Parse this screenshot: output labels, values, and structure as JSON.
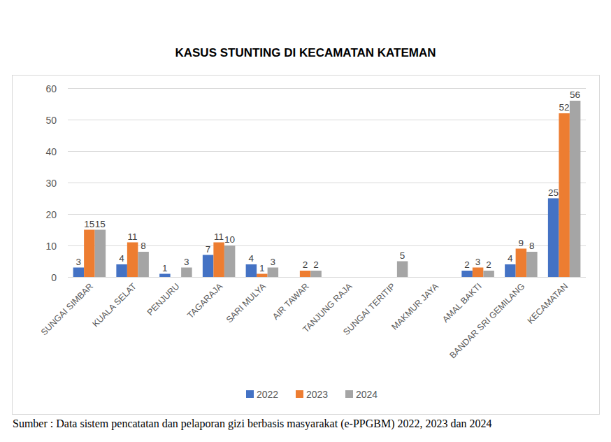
{
  "chart_data": {
    "type": "bar",
    "title": "KASUS STUNTING DI KECAMATAN KATEMAN",
    "source": "Sumber : Data sistem pencatatan dan pelaporan gizi berbasis masyarakat (e-PPGBM) 2022, 2023 dan 2024",
    "categories": [
      "SUNGAI SIMBAR",
      "KUALA SELAT",
      "PENJURU",
      "TAGARAJA",
      "SARI MULYA",
      "AIR TAWAR",
      "TANJUNG RAJA",
      "SUNGAI TERITIP",
      "MAKMUR JAYA",
      "AMAL BAKTI",
      "BANDAR SRI GEMILANG",
      "KECAMATAN"
    ],
    "series": [
      {
        "name": "2022",
        "color": "#4472c4",
        "values": [
          3,
          4,
          1,
          7,
          4,
          null,
          null,
          null,
          null,
          2,
          4,
          25
        ]
      },
      {
        "name": "2023",
        "color": "#ed7d31",
        "values": [
          15,
          11,
          null,
          11,
          1,
          2,
          null,
          null,
          null,
          3,
          9,
          52
        ]
      },
      {
        "name": "2024",
        "color": "#a5a5a5",
        "values": [
          15,
          8,
          3,
          10,
          3,
          2,
          null,
          5,
          null,
          2,
          8,
          56
        ]
      }
    ],
    "ylim": [
      0,
      60
    ],
    "yticks": [
      0,
      10,
      20,
      30,
      40,
      50,
      60
    ],
    "grid": true,
    "legend": "bottom",
    "data_labels": true
  }
}
